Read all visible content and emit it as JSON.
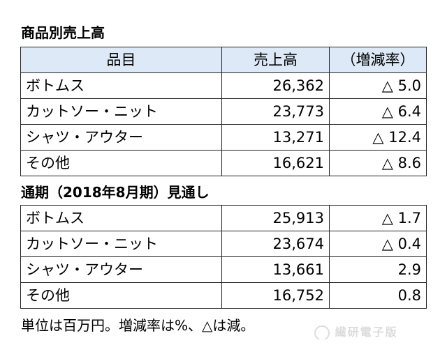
{
  "section1": {
    "title": "商品別売上高",
    "headers": {
      "item": "品目",
      "sales": "売上高",
      "rate": "（増減率）"
    },
    "rows": [
      {
        "item": "ボトムス",
        "sales": "26,362",
        "rate": "△ 5.0"
      },
      {
        "item": "カットソー・ニット",
        "sales": "23,773",
        "rate": "△ 6.4"
      },
      {
        "item": "シャツ・アウター",
        "sales": "13,271",
        "rate": "△ 12.4"
      },
      {
        "item": "その他",
        "sales": "16,621",
        "rate": "△ 8.6"
      }
    ]
  },
  "section2": {
    "title": "通期（2018年8月期）見通し",
    "rows": [
      {
        "item": "ボトムス",
        "sales": "25,913",
        "rate": "△ 1.7"
      },
      {
        "item": "カットソー・ニット",
        "sales": "23,674",
        "rate": "△ 0.4"
      },
      {
        "item": "シャツ・アウター",
        "sales": "13,661",
        "rate": "2.9"
      },
      {
        "item": "その他",
        "sales": "16,752",
        "rate": "0.8"
      }
    ]
  },
  "footnote": "単位は百万円。増減率は%、△は減。",
  "watermark": {
    "text": "繊研電子版"
  }
}
